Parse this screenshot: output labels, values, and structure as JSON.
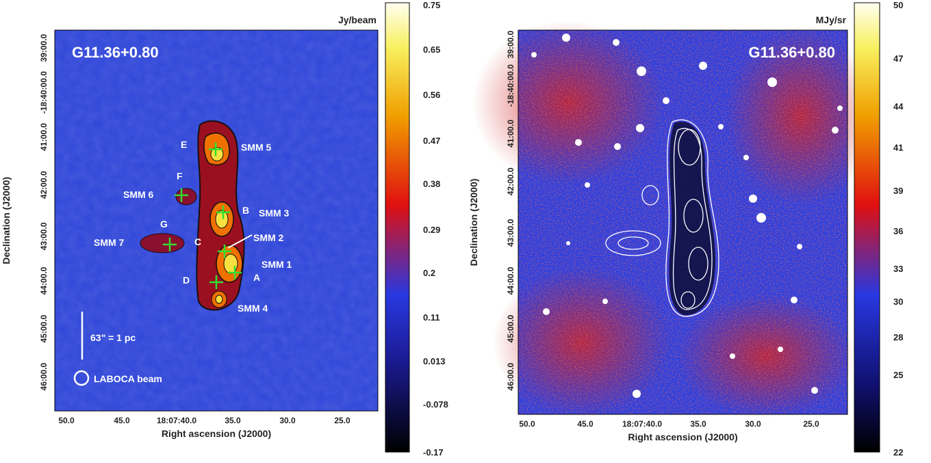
{
  "left_panel": {
    "unit": "Jy/beam",
    "label": "G11.36+0.80",
    "x_axis_label": "Right ascension (J2000)",
    "y_axis_label": "Declination (J2000)",
    "x_ticks": [
      "50.0",
      "45.0",
      "18:07:40.0",
      "35.0",
      "30.0",
      "25.0"
    ],
    "y_ticks": [
      "39:00.0",
      "-18:40:00.0",
      "41:00.0",
      "42:00.0",
      "43:00.0",
      "44:00.0",
      "45:00.0",
      "46:00.0"
    ],
    "colorbar_ticks": [
      "0.75",
      "0.65",
      "0.56",
      "0.47",
      "0.38",
      "0.29",
      "0.2",
      "0.11",
      "0.013",
      "-0.078",
      "-0.17"
    ],
    "annotations": [
      "E",
      "SMM 5",
      "F",
      "SMM 6",
      "B",
      "SMM 3",
      "G",
      "SMM 7",
      "C",
      "SMM 2",
      "SMM 1",
      "A",
      "D",
      "SMM 4"
    ],
    "scale_bar": "63\" = 1 pc",
    "beam_label": "LABOCA beam"
  },
  "right_panel": {
    "unit": "MJy/sr",
    "label": "G11.36+0.80",
    "x_axis_label": "Right ascension (J2000)",
    "y_axis_label": "Declination (J2000)",
    "x_ticks": [
      "50.0",
      "45.0",
      "18:07:40.0",
      "35.0",
      "30.0",
      "25.0"
    ],
    "y_ticks": [
      "39:00.0",
      "-18:40:00.0",
      "41:00.0",
      "42:00.0",
      "43:00.0",
      "44:00.0",
      "45:00.0",
      "46:00.0"
    ],
    "colorbar_ticks": [
      "50",
      "47",
      "44",
      "41",
      "39",
      "36",
      "33",
      "30",
      "28",
      "25",
      "22"
    ]
  }
}
